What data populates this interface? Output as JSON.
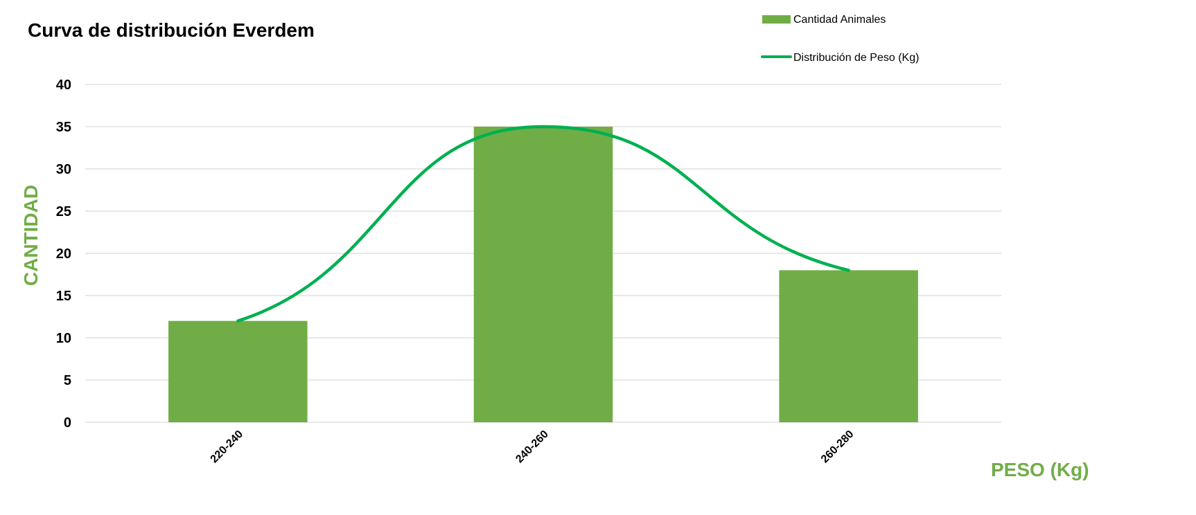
{
  "chart_data": {
    "type": "bar",
    "title": "Curva de distribución Everdem",
    "xlabel": "PESO (Kg)",
    "ylabel": "CANTIDAD",
    "categories": [
      "220-240",
      "240-260",
      "260-280"
    ],
    "series": [
      {
        "name": "Cantidad Animales",
        "type": "bar",
        "values": [
          12,
          35,
          18
        ],
        "color": "#70AD47"
      },
      {
        "name": "Distribución de Peso (Kg)",
        "type": "line",
        "smooth": true,
        "values": [
          12,
          35,
          18
        ],
        "color": "#00B050"
      }
    ],
    "ylim": [
      0,
      40
    ],
    "yticks": [
      0,
      5,
      10,
      15,
      20,
      25,
      30,
      35,
      40
    ],
    "grid": true,
    "legend_position": "top-right",
    "axis_title_color": "#70AD47",
    "gridline_color": "#D9D9D9"
  }
}
